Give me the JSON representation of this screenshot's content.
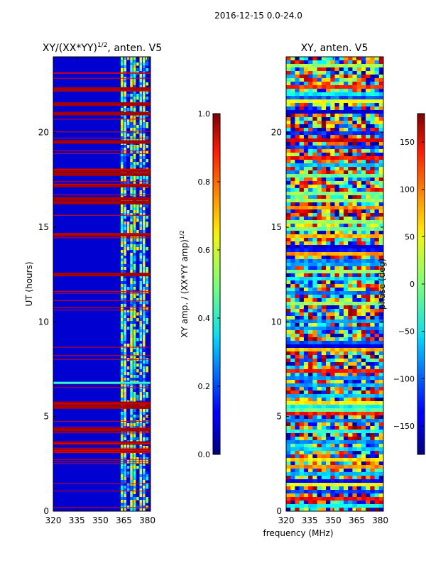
{
  "suptitle": "2016-12-15 0.0-24.0",
  "shared_xlabel": "frequency (MHz)",
  "chart_data": [
    {
      "type": "heatmap",
      "title": "XY/(XX*YY)$^{1/2}$, anten. V5",
      "title_text": "XY/(XX*YY)",
      "title_sup": "1/2",
      "title_suffix": ", anten. V5",
      "xlabel": "",
      "ylabel": "UT (hours)",
      "xlim": [
        320,
        382
      ],
      "ylim": [
        0,
        24
      ],
      "xticks": [
        320,
        335,
        350,
        365,
        380
      ],
      "yticks": [
        0,
        5,
        10,
        15,
        20
      ],
      "colorbar": {
        "label_text": "XY amp. / (XX*YY amp)",
        "label_sup": "1/2",
        "range": [
          0.0,
          1.0
        ],
        "ticks": [
          "0.0",
          "0.2",
          "0.4",
          "0.6",
          "0.8",
          "1.0"
        ],
        "tick_values": [
          0.0,
          0.2,
          0.4,
          0.6,
          0.8,
          1.0
        ]
      },
      "bright_bands_hours": [
        3.2,
        3.6,
        4.3,
        5.5,
        5.7,
        12.5,
        14.6,
        16.3,
        16.5,
        17.2,
        17.8,
        18.0,
        19.5,
        21.0,
        21.5,
        22.3
      ],
      "highlight_line_hour": 6.8,
      "active_freq_range": [
        363,
        381
      ]
    },
    {
      "type": "heatmap",
      "title": "XY, anten. V5",
      "xlabel": "frequency (MHz)",
      "ylabel": "",
      "xlim": [
        320,
        382
      ],
      "ylim": [
        0,
        24
      ],
      "xticks": [
        320,
        335,
        350,
        365,
        380
      ],
      "yticks": [
        0,
        5,
        10,
        15,
        20
      ],
      "colorbar": {
        "label_text": "phase (deg)",
        "range": [
          -180,
          180
        ],
        "ticks": [
          "−150",
          "−100",
          "−50",
          "0",
          "50",
          "100",
          "150"
        ],
        "tick_values": [
          -150,
          -100,
          -50,
          0,
          50,
          100,
          150
        ]
      }
    }
  ]
}
